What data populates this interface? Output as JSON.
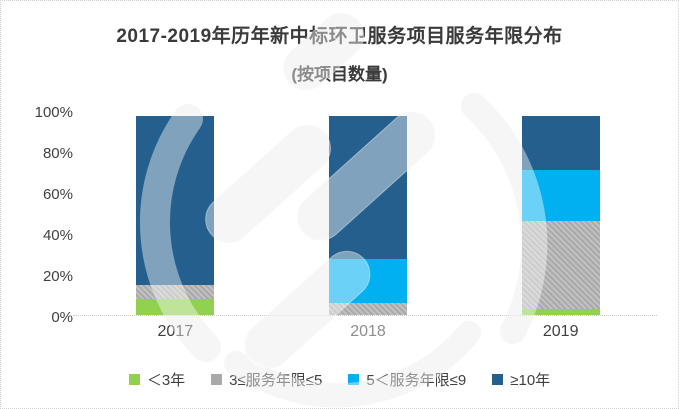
{
  "title": {
    "line1": "2017-2019年历年新中标环卫服务项目服务年限分布",
    "line2": "(按项目数量)"
  },
  "y_axis": {
    "t100": "100%",
    "t80": "80%",
    "t60": "60%",
    "t40": "40%",
    "t20": "20%",
    "t0": "0%"
  },
  "chart_data": {
    "type": "bar",
    "stacked": true,
    "percent_stacked": true,
    "title": "2017-2019年历年新中标环卫服务项目服务年限分布",
    "subtitle": "(按项目数量)",
    "categories": [
      "2017",
      "2018",
      "2019"
    ],
    "series": [
      {
        "name": "＜3年",
        "color": "#92D050",
        "values": [
          8,
          0,
          3
        ]
      },
      {
        "name": "3≤服务年限≤5",
        "color": "#A9A9A9",
        "values": [
          7,
          6,
          44
        ]
      },
      {
        "name": "5＜服务年限≤9",
        "color": "#00B0F0",
        "values": [
          0,
          22,
          26
        ]
      },
      {
        "name": "≥10年",
        "color": "#255F8E",
        "values": [
          85,
          72,
          27
        ]
      }
    ],
    "xlabel": "",
    "ylabel": "",
    "ylim": [
      0,
      100
    ],
    "ytick_labels": [
      "0%",
      "20%",
      "40%",
      "60%",
      "80%",
      "100%"
    ],
    "grid": false,
    "legend_position": "bottom"
  },
  "legend": {
    "items": [
      {
        "label": "＜3年"
      },
      {
        "label": "3≤服务年限≤5"
      },
      {
        "label": "5＜服务年限≤9"
      },
      {
        "label": "≥10年"
      }
    ]
  },
  "colors": {
    "green": "#92D050",
    "gray": "#A9A9A9",
    "cyan": "#00B0F0",
    "blue": "#255F8E",
    "text": "#3a3a3a",
    "baseline": "#c9c9c9",
    "watermark": "#f0f0f0"
  }
}
